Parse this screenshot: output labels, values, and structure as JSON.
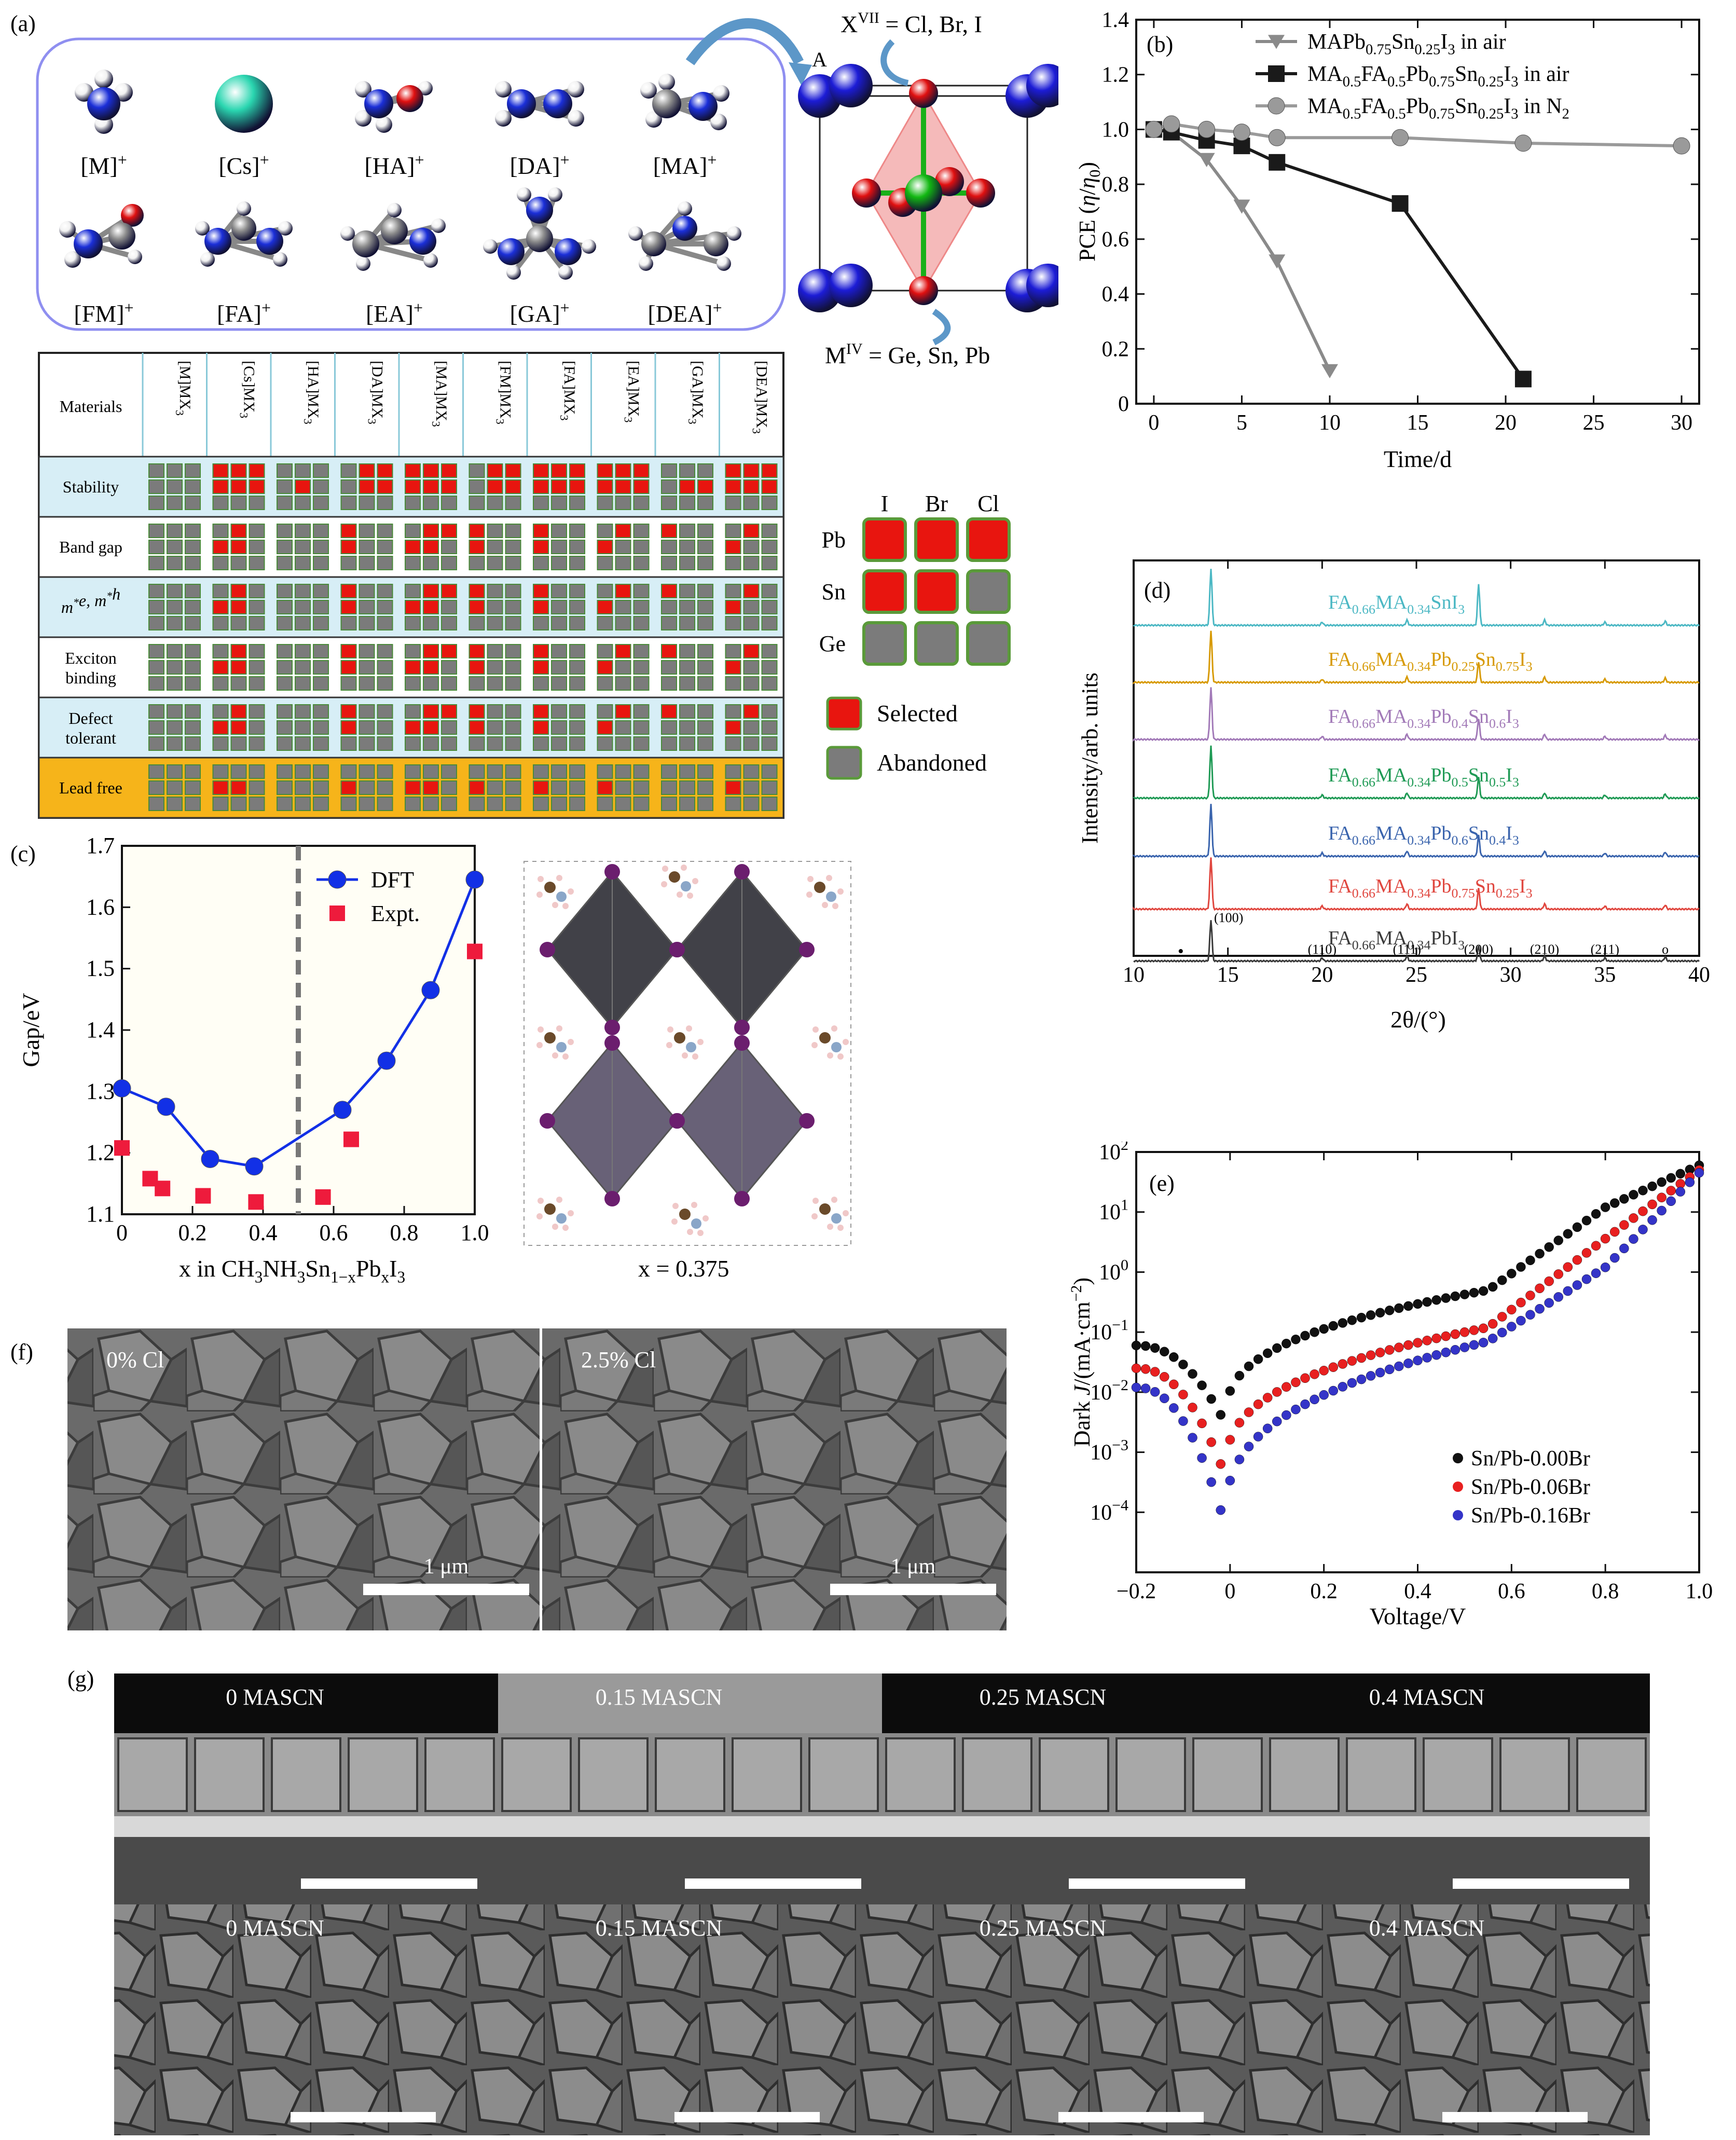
{
  "panel_a": {
    "label": "(a)",
    "cations": [
      "[M]+",
      "[Cs]+",
      "[HA]+",
      "[DA]+",
      "[MA]+",
      "[FM]+",
      "[FA]+",
      "[EA]+",
      "[GA]+",
      "[DEA]+"
    ],
    "cation_bases": [
      "[M]",
      "[Cs]",
      "[HA]",
      "[DA]",
      "[MA]",
      "[FM]",
      "[FA]",
      "[EA]",
      "[GA]",
      "[DEA]"
    ],
    "x_site_label": "X",
    "x_site_sup": "VII",
    "x_site_rest": " = Cl, Br, I",
    "m_site_label": "M",
    "m_site_sup": "IV",
    "m_site_rest": " = Ge, Sn, Pb",
    "a_site": "A",
    "table_columns": [
      "[M]MX3",
      "[Cs]MX3",
      "[HA]MX3",
      "[DA]MX3",
      "[MA]MX3",
      "[FM]MX3",
      "[FA]MX3",
      "[EA]MX3",
      "[GA]MX3",
      "[DEA]MX3"
    ],
    "table_header": "Materials",
    "table_rows": [
      "Stability",
      "Band gap",
      "m*e, m*h",
      "Exciton binding",
      "Defect tolerant",
      "Lead free"
    ],
    "row_label_lines": [
      [
        "Stability"
      ],
      [
        "Band gap"
      ],
      [
        "m*e, m*h"
      ],
      [
        "Exciton",
        "binding"
      ],
      [
        "Defect",
        "tolerant"
      ],
      [
        "Lead free"
      ]
    ],
    "legend_cols": [
      "I",
      "Br",
      "Cl"
    ],
    "legend_rows": [
      "Pb",
      "Sn",
      "Ge"
    ],
    "legend_selected": "Selected",
    "legend_abandoned": "Abandoned",
    "colors": {
      "selected": "#e8150f",
      "abandoned": "#7b7b7b",
      "row_blue": "#d7eef6",
      "row_orange": "#f6b41a",
      "frame": "#8f8ff0"
    }
  },
  "chart_data": [
    {
      "id": "b",
      "type": "line",
      "label": "(b)",
      "xlabel": "Time/d",
      "ylabel": "PCE (η/η0)",
      "xlim": [
        -1,
        31
      ],
      "ylim": [
        0,
        1.4
      ],
      "xticks": [
        0,
        5,
        10,
        15,
        20,
        25,
        30
      ],
      "yticks": [
        0,
        0.2,
        0.4,
        0.6,
        0.8,
        1.0,
        1.2,
        1.4
      ],
      "series": [
        {
          "name": "MAPb0.75Sn0.25I3 in air",
          "marker": "triangle",
          "color": "#8a8a8a",
          "x": [
            0,
            1,
            3,
            5,
            7,
            10
          ],
          "y": [
            1.0,
            0.99,
            0.89,
            0.72,
            0.52,
            0.12
          ]
        },
        {
          "name": "MA0.5FA0.5Pb0.75Sn0.25I3 in air",
          "marker": "square",
          "color": "#1a1a1a",
          "x": [
            0,
            1,
            3,
            5,
            7,
            14,
            21
          ],
          "y": [
            1.0,
            0.99,
            0.96,
            0.94,
            0.88,
            0.73,
            0.09
          ]
        },
        {
          "name": "MA0.5FA0.5Pb0.75Sn0.25I3 in N2",
          "marker": "circle",
          "color": "#9a9a9a",
          "x": [
            0,
            1,
            3,
            5,
            7,
            14,
            21,
            30
          ],
          "y": [
            1.0,
            1.02,
            1.0,
            0.99,
            0.97,
            0.97,
            0.95,
            0.94
          ]
        }
      ]
    },
    {
      "id": "c",
      "type": "scatter",
      "label": "(c)",
      "xlabel": "x in CH3NH3Sn1−xPbxI3",
      "ylabel": "Gap/eV",
      "xlim": [
        0,
        1.0
      ],
      "ylim": [
        1.1,
        1.7
      ],
      "xticks": [
        0,
        0.2,
        0.4,
        0.6,
        0.8,
        1.0
      ],
      "yticks": [
        1.1,
        1.2,
        1.3,
        1.4,
        1.5,
        1.6,
        1.7
      ],
      "series": [
        {
          "name": "DFT",
          "marker": "circle",
          "color": "#1230e6",
          "x": [
            0,
            0.125,
            0.25,
            0.375,
            0.625,
            0.75,
            0.875,
            1.0
          ],
          "y": [
            1.305,
            1.275,
            1.19,
            1.178,
            1.27,
            1.35,
            1.465,
            1.645
          ]
        },
        {
          "name": "Expt.",
          "marker": "square",
          "color": "#ee1b3c",
          "x": [
            0,
            0.08,
            0.115,
            0.23,
            0.38,
            0.57,
            0.65,
            1.0
          ],
          "y": [
            1.208,
            1.158,
            1.142,
            1.13,
            1.12,
            1.128,
            1.222,
            1.528
          ]
        }
      ],
      "divider_x": 0.5,
      "side_caption": "x = 0.375"
    },
    {
      "id": "d",
      "type": "line",
      "label": "(d)",
      "xlabel": "2θ/(°)",
      "ylabel": "Intensity/arb. units",
      "xlim": [
        10,
        40
      ],
      "xticks": [
        10,
        15,
        20,
        25,
        30,
        35,
        40
      ],
      "series": [
        {
          "name": "FA0.66MA0.34SnI3",
          "color": "#4cb8c4"
        },
        {
          "name": "FA0.66MA0.34Pb0.25Sn0.75I3",
          "color": "#d79a05"
        },
        {
          "name": "FA0.66MA0.34Pb0.4Sn0.6I3",
          "color": "#a27ab8"
        },
        {
          "name": "FA0.66MA0.34Pb0.5Sn0.5I3",
          "color": "#1f9a55"
        },
        {
          "name": "FA0.66MA0.34Pb0.6Sn0.4I3",
          "color": "#3a64ad"
        },
        {
          "name": "FA0.66MA0.34Pb0.75Sn0.25I3",
          "color": "#e0473f"
        },
        {
          "name": "FA0.66MA0.34PbI3",
          "color": "#3a3a3a"
        }
      ],
      "peaks": [
        {
          "x": 14.1,
          "label": "(100)"
        },
        {
          "x": 20.0,
          "label": "(110)"
        },
        {
          "x": 24.5,
          "label": "(111)"
        },
        {
          "x": 28.3,
          "label": "(200)"
        },
        {
          "x": 31.8,
          "label": "(210)"
        },
        {
          "x": 35.0,
          "label": "(211)"
        }
      ],
      "markers": [
        "•",
        "o"
      ]
    },
    {
      "id": "e",
      "type": "scatter",
      "label": "(e)",
      "yscale": "log",
      "xlabel": "Voltage/V",
      "ylabel": "Dark J/(mA·cm−2)",
      "xlim": [
        -0.2,
        1.0
      ],
      "ylim": [
        1e-05,
        100
      ],
      "xticks": [
        -0.2,
        0,
        0.2,
        0.4,
        0.6,
        0.8,
        1.0
      ],
      "yticks": [
        "10^2",
        "10^1",
        "10^0",
        "10^−1",
        "10^−2",
        "10^−3",
        "10^−4"
      ],
      "series": [
        {
          "name": "Sn/Pb-0.00Br",
          "color": "#111111",
          "Jmin": 0.003,
          "J0": 0.06,
          "Jk": 0.5,
          "Jk2": 4,
          "Jend": 60
        },
        {
          "name": "Sn/Pb-0.06Br",
          "color": "#e82020",
          "Jmin": 0.0004,
          "J0": 0.025,
          "Jk": 0.12,
          "Jk2": 1.2,
          "Jend": 50
        },
        {
          "name": "Sn/Pb-0.16Br",
          "color": "#3434c8",
          "Jmin": 6e-05,
          "J0": 0.012,
          "Jk": 0.07,
          "Jk2": 0.4,
          "Jend": 45
        }
      ]
    }
  ],
  "panel_b_legend_parts": [
    [
      [
        "MAPb",
        ""
      ],
      [
        "0.75",
        "sub"
      ],
      [
        "Sn",
        ""
      ],
      [
        "0.25",
        "sub"
      ],
      [
        "I",
        ""
      ],
      [
        "3",
        "sub"
      ],
      [
        " in air",
        ""
      ]
    ],
    [
      [
        "MA",
        ""
      ],
      [
        "0.5",
        "sub"
      ],
      [
        "FA",
        ""
      ],
      [
        "0.5",
        "sub"
      ],
      [
        "Pb",
        ""
      ],
      [
        "0.75",
        "sub"
      ],
      [
        "Sn",
        ""
      ],
      [
        "0.25",
        "sub"
      ],
      [
        "I",
        ""
      ],
      [
        "3",
        "sub"
      ],
      [
        " in air",
        ""
      ]
    ],
    [
      [
        "MA",
        ""
      ],
      [
        "0.5",
        "sub"
      ],
      [
        "FA",
        ""
      ],
      [
        "0.5",
        "sub"
      ],
      [
        "Pb",
        ""
      ],
      [
        "0.75",
        "sub"
      ],
      [
        "Sn",
        ""
      ],
      [
        "0.25",
        "sub"
      ],
      [
        "I",
        ""
      ],
      [
        "3",
        "sub"
      ],
      [
        " in N",
        ""
      ],
      [
        "2",
        "sub"
      ]
    ]
  ],
  "panel_f": {
    "label": "(f)",
    "images": [
      {
        "caption": "0% Cl",
        "scale": "1 μm"
      },
      {
        "caption": "2.5% Cl",
        "scale": "1 μm"
      }
    ]
  },
  "panel_g": {
    "label": "(g)",
    "cross_sections": [
      "0 MASCN",
      "0.15 MASCN",
      "0.25 MASCN",
      "0.4 MASCN"
    ],
    "top_views": [
      "0 MASCN",
      "0.15 MASCN",
      "0.25 MASCN",
      "0.4 MASCN"
    ]
  }
}
